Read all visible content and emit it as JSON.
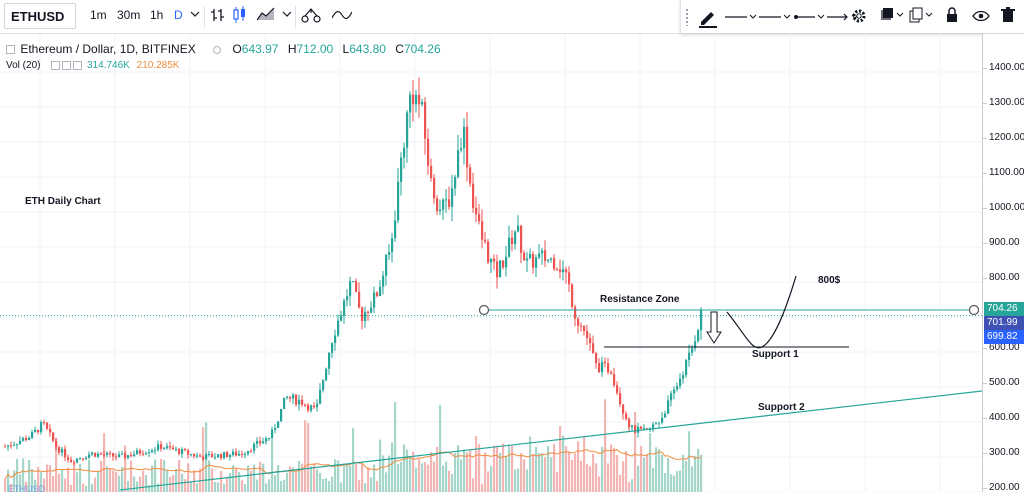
{
  "toolbar": {
    "symbol": "ETHUSD",
    "intervals": [
      "1m",
      "30m",
      "1h",
      "D"
    ],
    "active_interval": "D",
    "icons": [
      "chevron-down-icon",
      "bar-chart-icon",
      "candlestick-icon",
      "area-chart-icon",
      "chevron-down-icon",
      "compare-icon",
      "indicators-icon"
    ]
  },
  "drawbar": {
    "icons": [
      "pencil-icon",
      "line-style-icon",
      "line-width-icon",
      "line-end-icon",
      "line-arrow-icon",
      "settings-icon",
      "clone-icon",
      "copy-icon",
      "lock-icon",
      "visibility-icon",
      "delete-icon"
    ]
  },
  "legend": {
    "title": "Ethereum / Dollar, 1D, BITFINEX",
    "open_label": "O",
    "open": "643.97",
    "high_label": "H",
    "high": "712.00",
    "low_label": "L",
    "low": "643.80",
    "close_label": "C",
    "close": "704.26",
    "volume_label": "Vol (20)",
    "volume_value": "314.746K",
    "volume_ma": "210.285K"
  },
  "price_scale": {
    "ticks": [
      "1400.00",
      "1300.00",
      "1200.00",
      "1100.00",
      "1000.00",
      "900.00",
      "800.00",
      "700.00",
      "600.00",
      "500.00",
      "400.00",
      "300.00",
      "200.00"
    ],
    "tags": [
      {
        "label": "704.26",
        "color": "#26a69a"
      },
      {
        "label": "701.99",
        "color": "#3f51b5"
      },
      {
        "label": "699.82",
        "color": "#2962ff"
      }
    ]
  },
  "annotations": {
    "eth_daily": "ETH Daily Chart",
    "resistance": "Resistance Zone",
    "support1": "Support 1",
    "support2": "Support 2",
    "target": "800$"
  },
  "bottom_label": "ETHUSD",
  "colors": {
    "up": "#26a69a",
    "down": "#ef5350",
    "grid": "#f0f3fa",
    "trendline": "#26a69a",
    "volume_up": "#a5d6c9",
    "volume_down": "#f4b6b5",
    "volume_ma": "#ef8d3c"
  },
  "chart_data": {
    "type": "candlestick",
    "title": "Ethereum / Dollar, 1D, BITFINEX",
    "ylim": [
      180,
      1460
    ],
    "y_ticks": [
      200,
      300,
      400,
      500,
      600,
      700,
      800,
      900,
      1000,
      1100,
      1200,
      1300,
      1400
    ],
    "last_close": 704.26
  }
}
